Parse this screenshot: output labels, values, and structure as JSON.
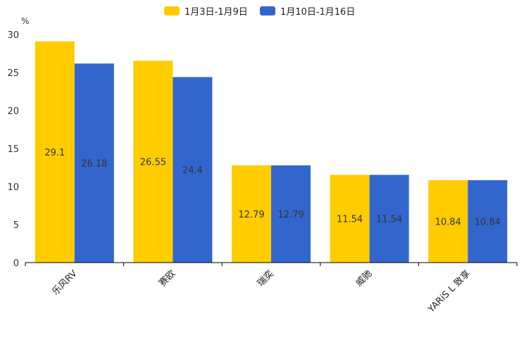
{
  "chart_data": {
    "type": "bar",
    "unit_label": "%",
    "categories": [
      "乐风RV",
      "赛欧",
      "瑞奕",
      "威驰",
      "YARiS L 致享"
    ],
    "series": [
      {
        "name": "1月3日-1月9日",
        "color": "#FFCC00",
        "values": [
          29.1,
          26.55,
          12.79,
          11.54,
          10.84
        ],
        "labels": [
          "29.1",
          "26.55",
          "12.79",
          "11.54",
          "10.84"
        ]
      },
      {
        "name": "1月10日-1月16日",
        "color": "#3366CC",
        "values": [
          26.18,
          24.4,
          12.79,
          11.54,
          10.84
        ],
        "labels": [
          "26.18",
          "24.4",
          "12.79",
          "11.54",
          "10.84"
        ]
      }
    ],
    "ylim": [
      0,
      30
    ],
    "yticks": [
      "0",
      "5",
      "10",
      "15",
      "20",
      "25",
      "30"
    ],
    "legend_position": "top-center",
    "grid": false
  }
}
